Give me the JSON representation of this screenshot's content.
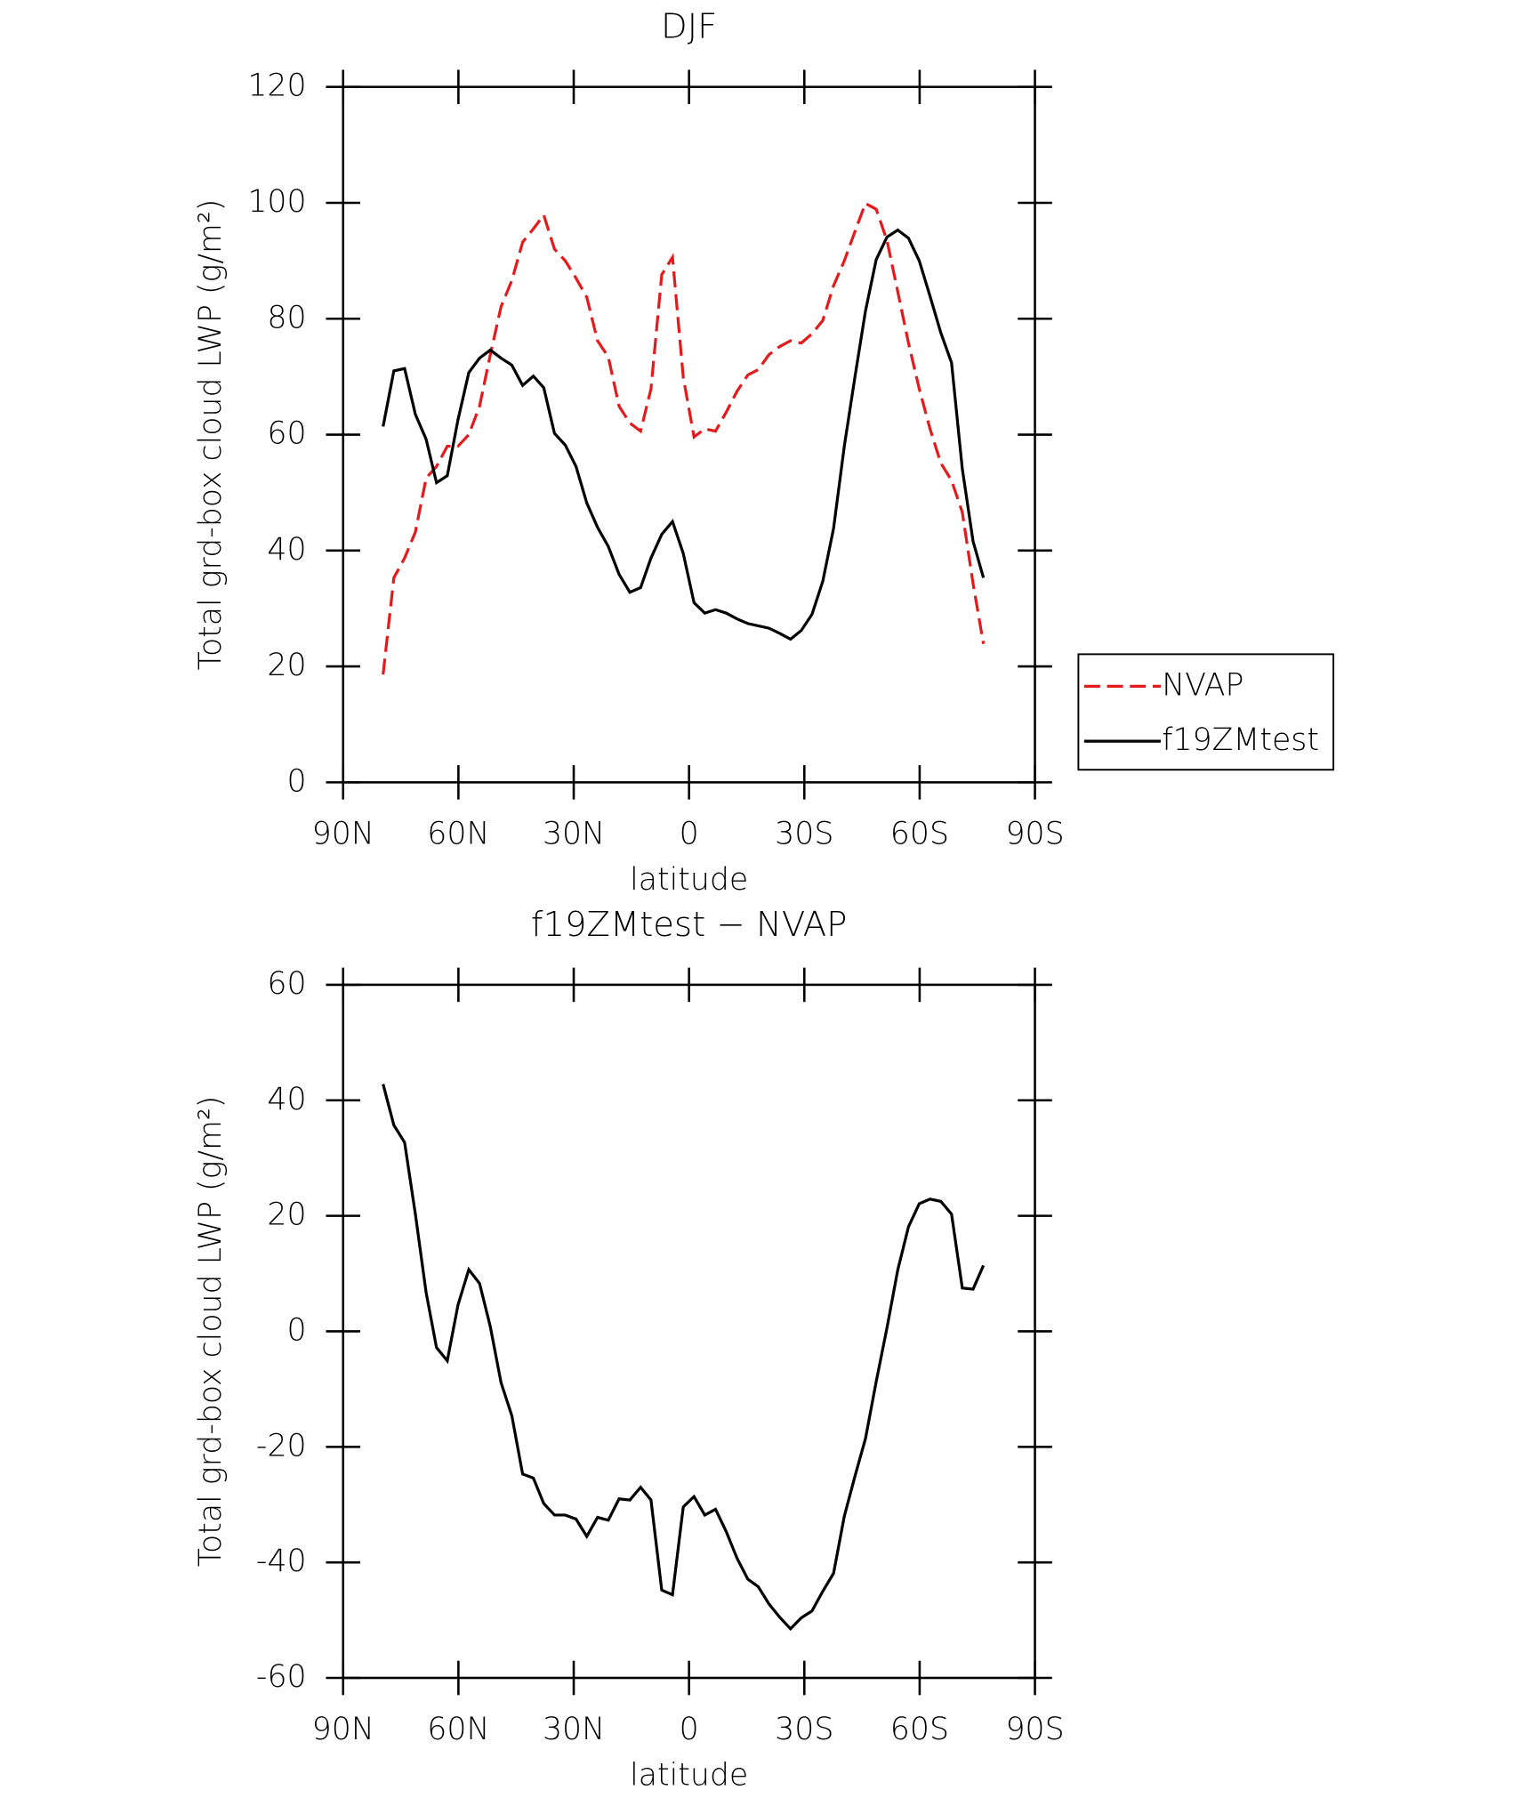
{
  "chart_data": [
    {
      "type": "line",
      "title": "DJF",
      "xlabel": "latitude",
      "ylabel": "Total grd-box cloud LWP (g/m²)",
      "x": [
        79.6,
        76.8,
        74.0,
        71.2,
        68.4,
        65.7,
        62.9,
        60.1,
        57.3,
        54.5,
        51.7,
        48.9,
        46.1,
        43.3,
        40.5,
        37.8,
        35.0,
        32.2,
        29.4,
        26.6,
        23.8,
        21.0,
        18.2,
        15.4,
        12.6,
        9.9,
        7.1,
        4.3,
        1.5,
        -1.3,
        -4.1,
        -6.9,
        -9.7,
        -12.5,
        -15.3,
        -18.0,
        -20.8,
        -23.6,
        -26.4,
        -29.2,
        -32.0,
        -34.8,
        -37.6,
        -40.4,
        -43.2,
        -45.9,
        -48.7,
        -51.5,
        -54.3,
        -57.1,
        -59.9,
        -62.7,
        -65.5,
        -68.3,
        -71.1,
        -73.9,
        -76.6
      ],
      "series": [
        {
          "name": "NVAP",
          "color": "#e41a1c",
          "dash": true,
          "values": [
            18.6,
            35.3,
            38.7,
            43.2,
            52.5,
            54.5,
            58.0,
            58.0,
            60.0,
            64.9,
            73.8,
            82.1,
            86.6,
            93.2,
            95.5,
            97.9,
            92.0,
            90.0,
            87.0,
            83.7,
            76.2,
            73.4,
            64.9,
            62.0,
            60.6,
            67.9,
            87.6,
            90.6,
            69.9,
            59.6,
            61.0,
            60.6,
            63.9,
            67.5,
            70.3,
            71.2,
            73.8,
            75.2,
            76.2,
            75.8,
            77.4,
            79.7,
            85.7,
            90.0,
            95.1,
            99.9,
            98.9,
            93.5,
            84.7,
            75.8,
            67.9,
            61.0,
            55.1,
            52.1,
            46.6,
            34.3,
            23.9
          ]
        },
        {
          "name": "f19ZMtest",
          "color": "#000000",
          "dash": false,
          "values": [
            61.4,
            71.0,
            71.4,
            63.5,
            59.2,
            51.7,
            52.9,
            62.6,
            70.7,
            73.2,
            74.6,
            73.2,
            72.0,
            68.5,
            70.1,
            68.1,
            60.2,
            58.2,
            54.5,
            48.2,
            44.0,
            40.7,
            35.9,
            32.8,
            33.6,
            38.7,
            42.8,
            45.0,
            39.5,
            31.0,
            29.2,
            29.8,
            29.2,
            28.2,
            27.4,
            27.0,
            26.6,
            25.7,
            24.7,
            26.2,
            29.0,
            34.7,
            43.8,
            58.0,
            70.1,
            81.3,
            90.2,
            94.1,
            95.3,
            93.9,
            90.0,
            83.9,
            77.6,
            72.4,
            54.1,
            41.6,
            35.3
          ]
        }
      ],
      "xlim": [
        90,
        -90
      ],
      "xticks": [
        {
          "value": 90,
          "label": "90N"
        },
        {
          "value": 60,
          "label": "60N"
        },
        {
          "value": 30,
          "label": "30N"
        },
        0,
        {
          "value": -30,
          "label": "30S"
        },
        {
          "value": -60,
          "label": "60S"
        },
        {
          "value": -90,
          "label": "90S"
        }
      ],
      "ylim": [
        0,
        120
      ],
      "yticks": [
        0,
        20,
        40,
        60,
        80,
        100,
        120
      ],
      "legend": "right"
    },
    {
      "type": "line",
      "title": "f19ZMtest − NVAP",
      "xlabel": "latitude",
      "ylabel": "Total grd-box cloud LWP (g/m²)",
      "x": [
        79.6,
        76.8,
        74.0,
        71.2,
        68.4,
        65.7,
        62.9,
        60.1,
        57.3,
        54.5,
        51.7,
        48.9,
        46.1,
        43.3,
        40.5,
        37.8,
        35.0,
        32.2,
        29.4,
        26.6,
        23.8,
        21.0,
        18.2,
        15.4,
        12.6,
        9.9,
        7.1,
        4.3,
        1.5,
        -1.3,
        -4.1,
        -6.9,
        -9.7,
        -12.5,
        -15.3,
        -18.0,
        -20.8,
        -23.6,
        -26.4,
        -29.2,
        -32.0,
        -34.8,
        -37.6,
        -40.4,
        -43.2,
        -45.9,
        -48.7,
        -51.5,
        -54.3,
        -57.1,
        -59.9,
        -62.7,
        -65.5,
        -68.3,
        -71.1,
        -73.9,
        -76.6
      ],
      "series": [
        {
          "color": "#000000",
          "dash": false,
          "values": [
            42.8,
            35.7,
            32.7,
            20.3,
            6.7,
            -2.8,
            -5.1,
            4.6,
            10.7,
            8.3,
            0.8,
            -8.9,
            -14.6,
            -24.7,
            -25.4,
            -29.8,
            -31.8,
            -31.8,
            -32.5,
            -35.5,
            -32.2,
            -32.7,
            -29.0,
            -29.2,
            -27.0,
            -29.2,
            -44.8,
            -45.6,
            -30.4,
            -28.6,
            -31.8,
            -30.8,
            -34.7,
            -39.3,
            -42.9,
            -44.2,
            -47.2,
            -49.5,
            -51.5,
            -49.6,
            -48.4,
            -45.0,
            -41.9,
            -32.0,
            -25.0,
            -18.6,
            -8.7,
            0.6,
            10.6,
            18.1,
            22.1,
            22.9,
            22.5,
            20.3,
            7.5,
            7.3,
            11.4
          ]
        }
      ],
      "xlim": [
        90,
        -90
      ],
      "xticks": [
        {
          "value": 90,
          "label": "90N"
        },
        {
          "value": 60,
          "label": "60N"
        },
        {
          "value": 30,
          "label": "30N"
        },
        0,
        {
          "value": -30,
          "label": "30S"
        },
        {
          "value": -60,
          "label": "60S"
        },
        {
          "value": -90,
          "label": "90S"
        }
      ],
      "ylim": [
        -60,
        60
      ],
      "yticks": [
        -60,
        -40,
        -20,
        0,
        20,
        40,
        60
      ]
    }
  ]
}
